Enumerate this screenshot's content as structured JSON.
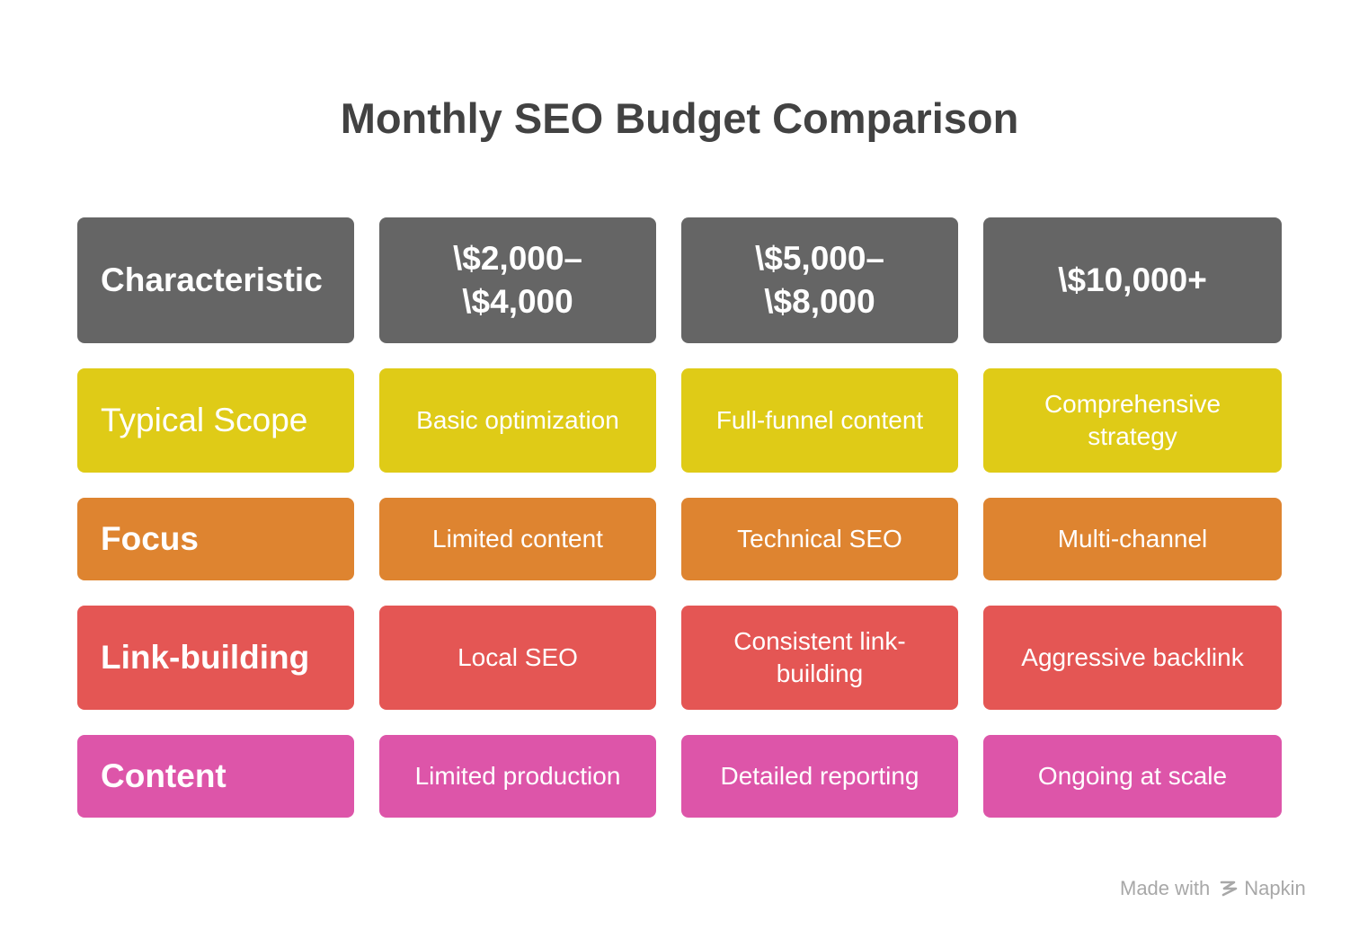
{
  "title": "Monthly SEO Budget Comparison",
  "header": {
    "label": "Characteristic",
    "tiers": [
      "\\$2,000–\\$4,000",
      "\\$5,000–\\$8,000",
      "\\$10,000+"
    ]
  },
  "rows": [
    {
      "label": "Typical Scope",
      "values": [
        "Basic optimization",
        "Full-funnel content",
        "Comprehensive strategy"
      ],
      "color": "#dfcb17"
    },
    {
      "label": "Focus",
      "values": [
        "Limited content",
        "Technical SEO",
        "Multi-channel"
      ],
      "color": "#de8430"
    },
    {
      "label": "Link-building",
      "values": [
        "Local SEO",
        "Consistent link-building",
        "Aggressive backlink"
      ],
      "color": "#e45654"
    },
    {
      "label": "Content",
      "values": [
        "Limited production",
        "Detailed reporting",
        "Ongoing at scale"
      ],
      "color": "#dd55a9"
    }
  ],
  "header_color": "#656565",
  "footer": {
    "made_with": "Made with",
    "brand": "Napkin",
    "brand_icon": "napkin-logo-icon"
  }
}
